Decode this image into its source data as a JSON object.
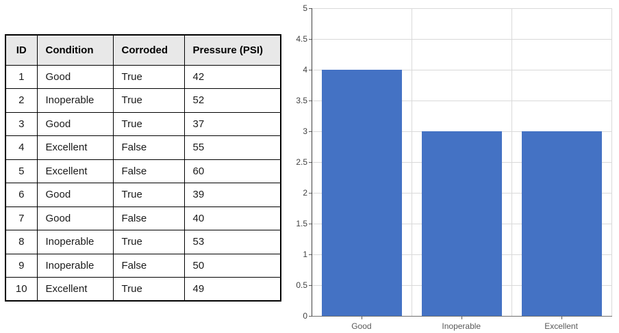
{
  "table": {
    "headers": [
      "ID",
      "Condition",
      "Corroded",
      "Pressure (PSI)"
    ],
    "rows": [
      [
        "1",
        "Good",
        "True",
        "42"
      ],
      [
        "2",
        "Inoperable",
        "True",
        "52"
      ],
      [
        "3",
        "Good",
        "True",
        "37"
      ],
      [
        "4",
        "Excellent",
        "False",
        "55"
      ],
      [
        "5",
        "Excellent",
        "False",
        "60"
      ],
      [
        "6",
        "Good",
        "True",
        "39"
      ],
      [
        "7",
        "Good",
        "False",
        "40"
      ],
      [
        "8",
        "Inoperable",
        "True",
        "53"
      ],
      [
        "9",
        "Inoperable",
        "False",
        "50"
      ],
      [
        "10",
        "Excellent",
        "True",
        "49"
      ]
    ],
    "header_bg": "#E8E8E8",
    "border_color": "#000000"
  },
  "chart_data": {
    "type": "bar",
    "categories": [
      "Good",
      "Inoperable",
      "Excellent"
    ],
    "values": [
      4,
      3,
      3
    ],
    "title": "",
    "xlabel": "",
    "ylabel": "",
    "ylim": [
      0,
      5
    ],
    "ytick_step": 0.5,
    "ytick_labels": [
      "0",
      "0.5",
      "1",
      "1.5",
      "2",
      "2.5",
      "3",
      "3.5",
      "4",
      "4.5",
      "5"
    ],
    "grid": true,
    "legend_position": "none",
    "bar_color": "#4472C4",
    "grid_color": "#D9D9D9",
    "axis_color": "#404040",
    "ylabel_color": "#404040",
    "xlabel_color": "#595959"
  }
}
